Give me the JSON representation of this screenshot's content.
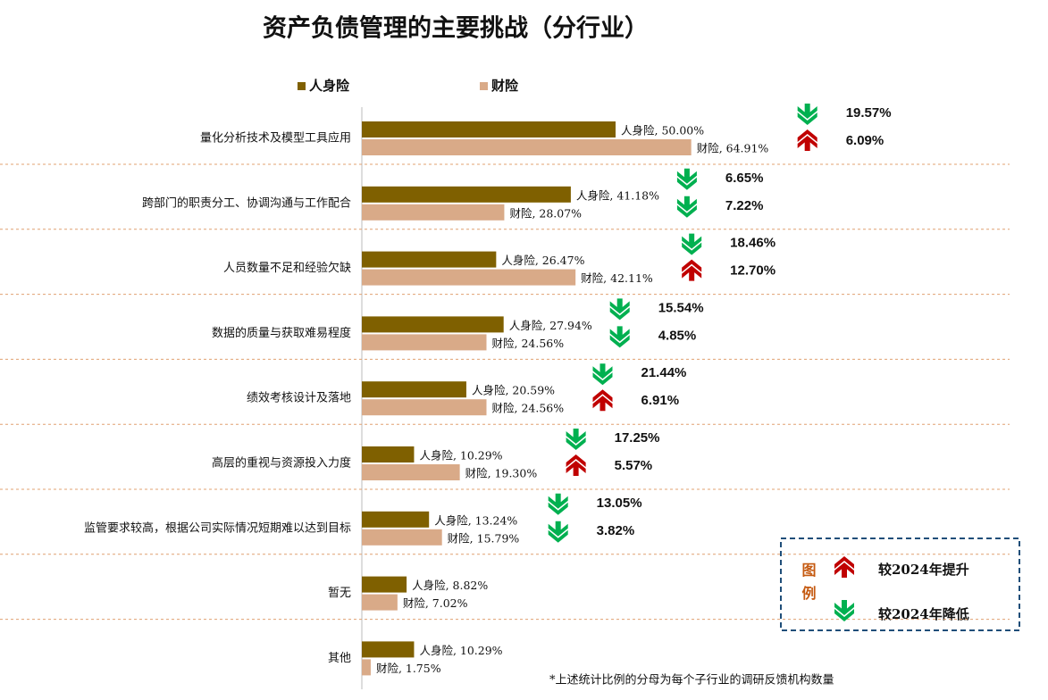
{
  "chart_data": {
    "type": "bar",
    "orientation": "horizontal",
    "title": "资产负债管理的主要挑战（分行业）",
    "categories": [
      "量化分析技术及模型工具应用",
      "跨部门的职责分工、协调沟通与工作配合",
      "人员数量不足和经验欠缺",
      "数据的质量与获取难易程度",
      "绩效考核设计及落地",
      "高层的重视与资源投入力度",
      "监管要求较高，根据公司实际情况短期难以达到目标",
      "暂无",
      "其他"
    ],
    "series": [
      {
        "name": "人身险",
        "color": "#7f6000",
        "values": [
          50,
          41.18,
          26.47,
          27.94,
          20.59,
          10.29,
          13.24,
          8.82,
          10.29
        ],
        "value_labels": [
          "人身险, 50.00%",
          "人身险, 41.18%",
          "人身险, 26.47%",
          "人身险, 27.94%",
          "人身险, 20.59%",
          "人身险, 10.29%",
          "人身险, 13.24%",
          "人身险, 8.82%",
          "人身险, 10.29%"
        ]
      },
      {
        "name": "财险",
        "color": "#d9aa88",
        "values": [
          64.91,
          28.07,
          42.11,
          24.56,
          24.56,
          19.3,
          15.79,
          7.02,
          1.75
        ],
        "value_labels": [
          "财险, 64.91%",
          "财险, 28.07%",
          "财险, 42.11%",
          "财险, 24.56%",
          "财险, 24.56%",
          "财险, 19.30%",
          "财险, 15.79%",
          "财险, 7.02%",
          "财险, 1.75%"
        ]
      }
    ],
    "xlim": [
      0,
      100
    ],
    "changes": [
      {
        "values": [
          19.57,
          6.09
        ],
        "labels": [
          "19.57%",
          "6.09%"
        ],
        "directions": [
          "down",
          "up"
        ]
      },
      {
        "values": [
          6.65,
          7.22
        ],
        "labels": [
          "6.65%",
          "7.22%"
        ],
        "directions": [
          "down",
          "down"
        ]
      },
      {
        "values": [
          18.46,
          12.7
        ],
        "labels": [
          "18.46%",
          "12.70%"
        ],
        "directions": [
          "down",
          "up"
        ]
      },
      {
        "values": [
          15.54,
          4.85
        ],
        "labels": [
          "15.54%",
          "4.85%"
        ],
        "directions": [
          "down",
          "down"
        ]
      },
      {
        "values": [
          21.44,
          6.91
        ],
        "labels": [
          "21.44%",
          "6.91%"
        ],
        "directions": [
          "down",
          "up"
        ]
      },
      {
        "values": [
          17.25,
          5.57
        ],
        "labels": [
          "17.25%",
          "5.57%"
        ],
        "directions": [
          "down",
          "up"
        ]
      },
      {
        "values": [
          13.05,
          3.82
        ],
        "labels": [
          "13.05%",
          "3.82%"
        ],
        "directions": [
          "down",
          "down"
        ]
      },
      null,
      null
    ],
    "up_color": "#c00000",
    "down_color": "#00b050",
    "change_legend": {
      "title": "图例",
      "up": "较2024年提升",
      "down": "较2024年降低"
    },
    "footnote": "*上述统计比例的分母为每个子行业的调研反馈机构数量"
  }
}
